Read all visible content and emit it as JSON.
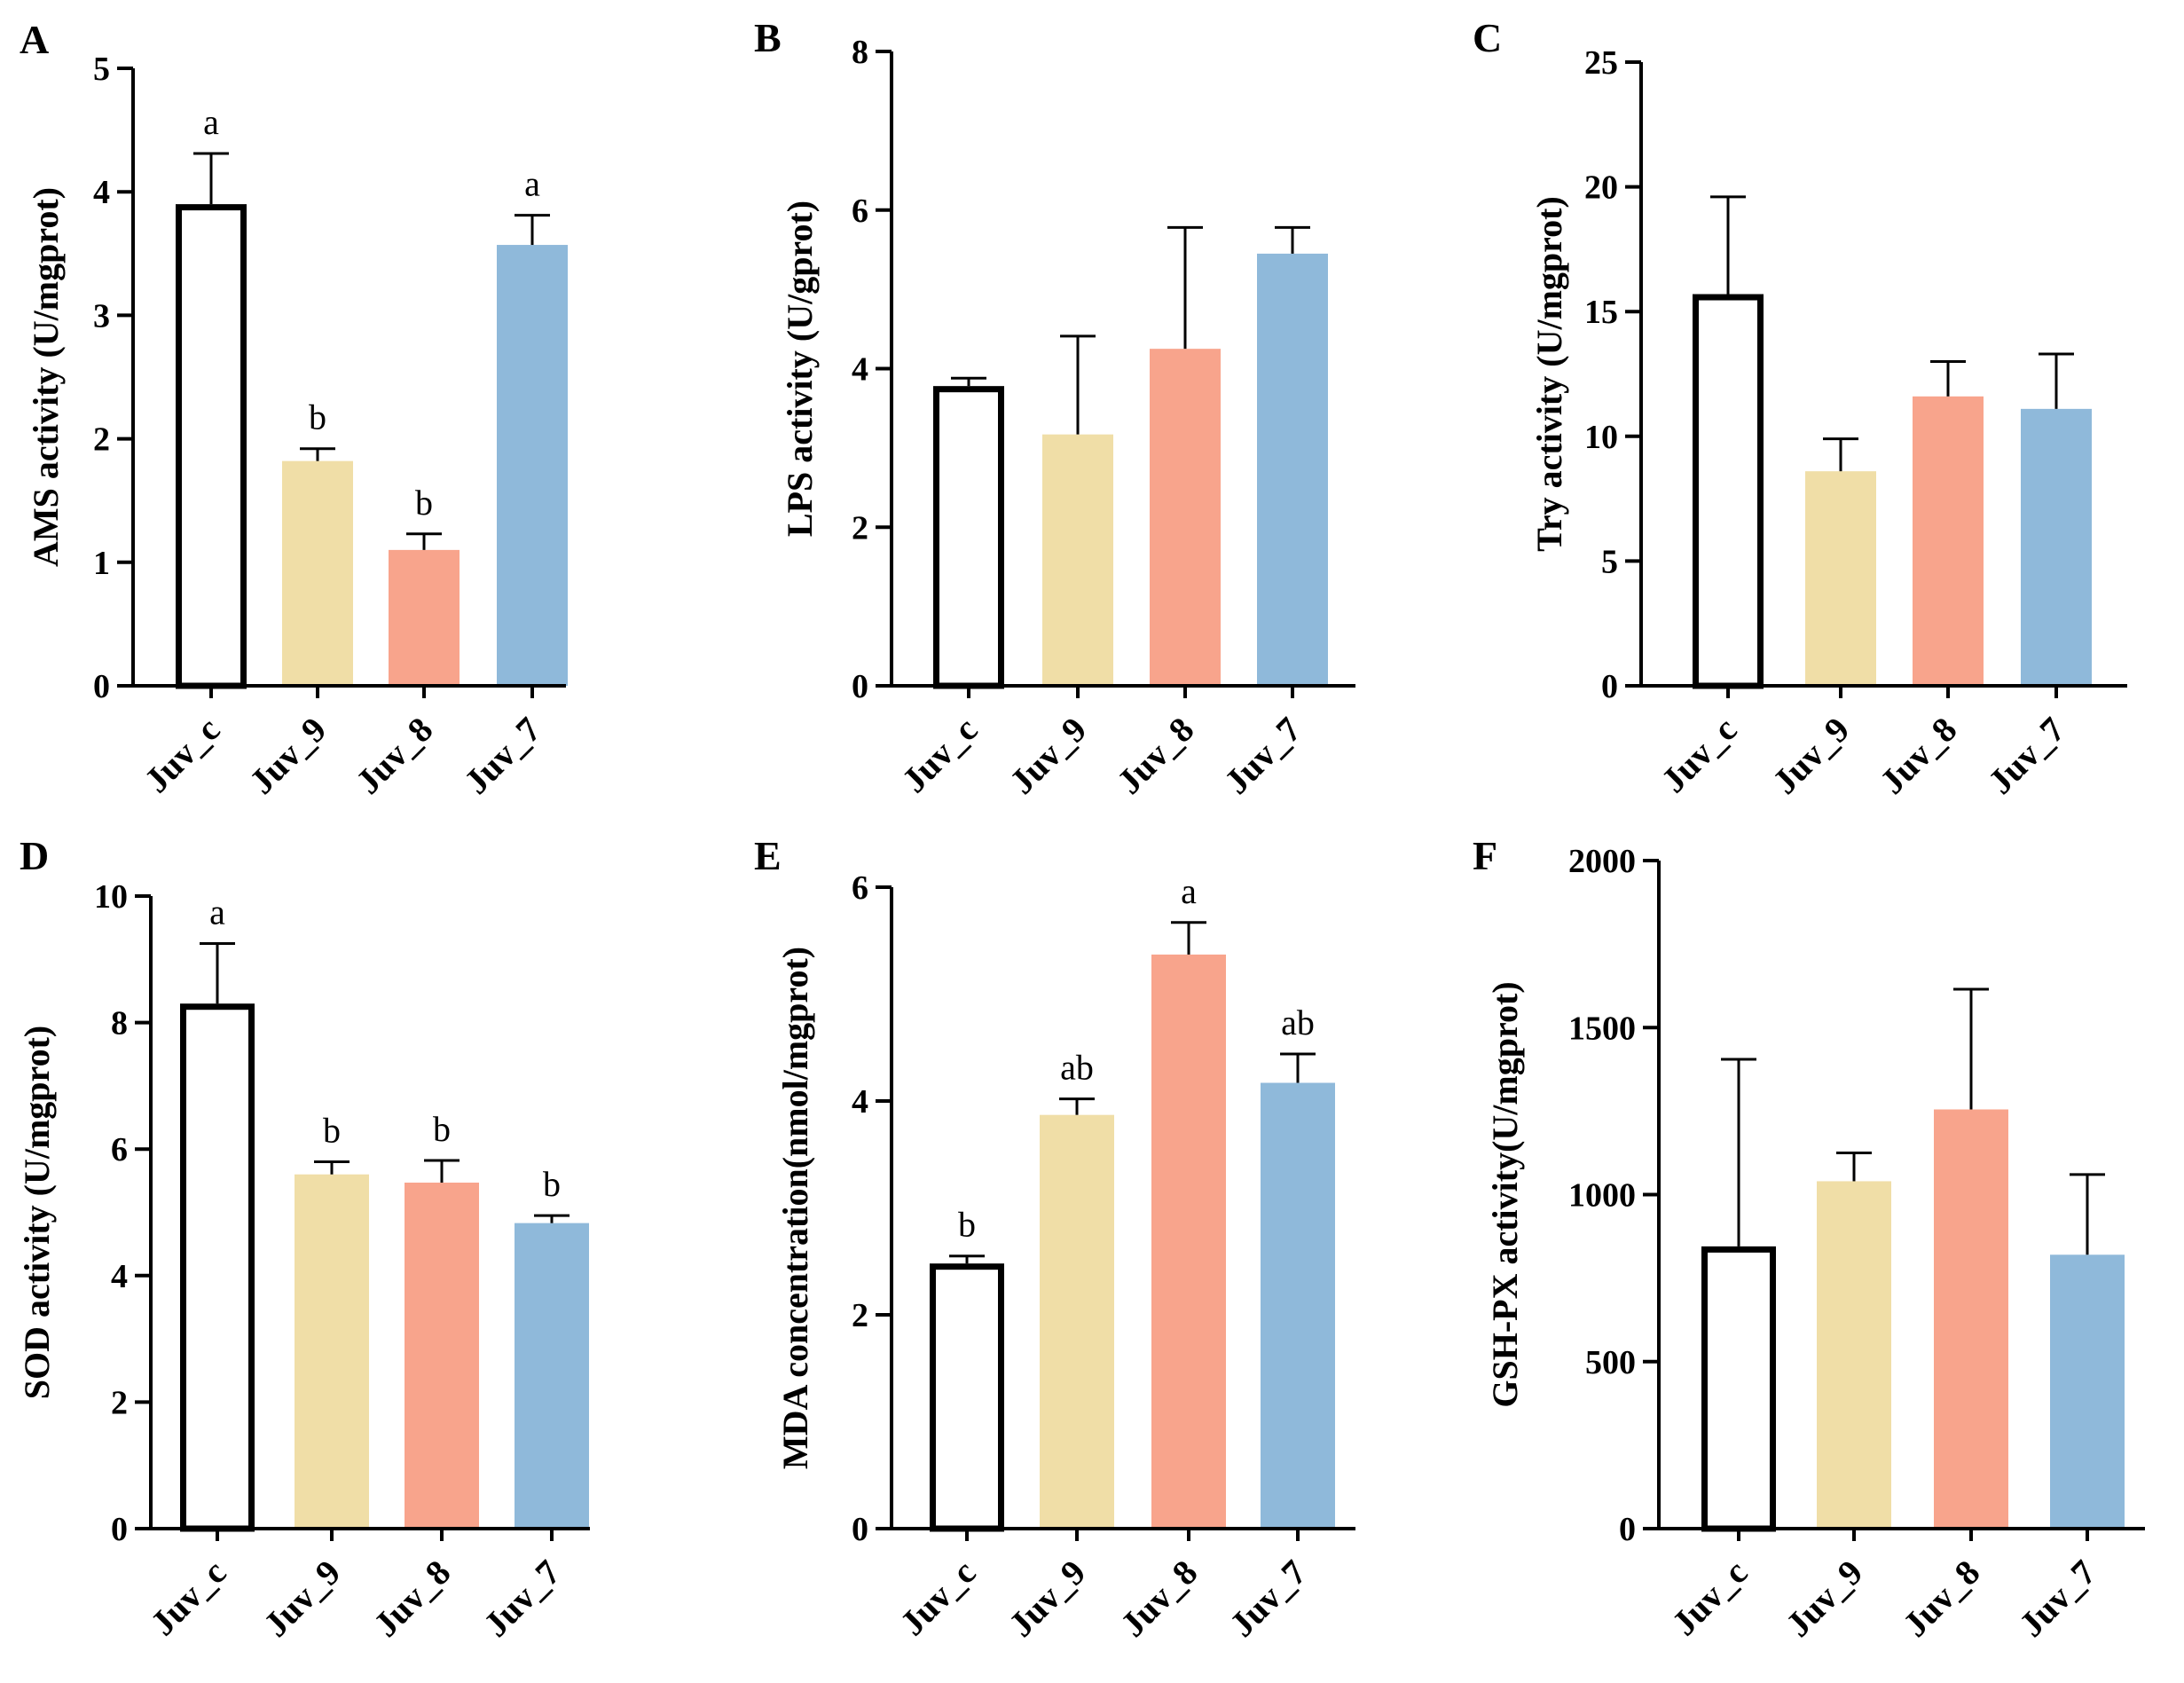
{
  "chart_data": [
    {
      "type": "bar",
      "panel": "A",
      "ylabel": "AMS activity (U/mgprot)",
      "categories": [
        "Juv_c",
        "Juv_9",
        "Juv_8",
        "Juv_7"
      ],
      "values": [
        3.9,
        1.82,
        1.1,
        3.57
      ],
      "errors": [
        0.41,
        0.1,
        0.13,
        0.24
      ],
      "letters": [
        "a",
        "b",
        "b",
        "a"
      ],
      "ylim": [
        0,
        5
      ],
      "yticks": [
        0,
        1,
        2,
        3,
        4,
        5
      ]
    },
    {
      "type": "bar",
      "panel": "B",
      "ylabel": "LPS activity (U/gprot)",
      "categories": [
        "Juv_c",
        "Juv_9",
        "Juv_8",
        "Juv_7"
      ],
      "values": [
        3.78,
        3.17,
        4.25,
        5.45
      ],
      "errors": [
        0.1,
        1.24,
        1.53,
        0.33
      ],
      "letters": [
        "",
        "",
        "",
        ""
      ],
      "ylim": [
        0,
        8
      ],
      "yticks": [
        0,
        2,
        4,
        6,
        8
      ]
    },
    {
      "type": "bar",
      "panel": "C",
      "ylabel": "Try activity (U/mgprot)",
      "categories": [
        "Juv_c",
        "Juv_9",
        "Juv_8",
        "Juv_7"
      ],
      "values": [
        15.7,
        8.6,
        11.6,
        11.1
      ],
      "errors": [
        3.9,
        1.3,
        1.4,
        2.2
      ],
      "letters": [
        "",
        "",
        "",
        ""
      ],
      "ylim": [
        0,
        25
      ],
      "yticks": [
        0,
        5,
        10,
        15,
        20,
        25
      ]
    },
    {
      "type": "bar",
      "panel": "D",
      "ylabel": "SOD activity (U/mgprot)",
      "categories": [
        "Juv_c",
        "Juv_9",
        "Juv_8",
        "Juv_7"
      ],
      "values": [
        8.3,
        5.6,
        5.47,
        4.83
      ],
      "errors": [
        0.95,
        0.2,
        0.35,
        0.12
      ],
      "letters": [
        "a",
        "b",
        "b",
        "b"
      ],
      "ylim": [
        0,
        10
      ],
      "yticks": [
        0,
        2,
        4,
        6,
        8,
        10
      ]
    },
    {
      "type": "bar",
      "panel": "E",
      "ylabel": "MDA concentration(nmol/mgprot)",
      "categories": [
        "Juv_c",
        "Juv_9",
        "Juv_8",
        "Juv_7"
      ],
      "values": [
        2.48,
        3.87,
        5.37,
        4.17
      ],
      "errors": [
        0.07,
        0.15,
        0.3,
        0.27
      ],
      "letters": [
        "b",
        "ab",
        "a",
        "ab"
      ],
      "ylim": [
        0,
        6
      ],
      "yticks": [
        0,
        2,
        4,
        6
      ]
    },
    {
      "type": "bar",
      "panel": "F",
      "ylabel": "GSH-PX activity(U/mgprot)",
      "categories": [
        "Juv_c",
        "Juv_9",
        "Juv_8",
        "Juv_7"
      ],
      "values": [
        845,
        1040,
        1255,
        820
      ],
      "errors": [
        560,
        85,
        360,
        240
      ],
      "letters": [
        "",
        "",
        "",
        ""
      ],
      "ylim": [
        0,
        2000
      ],
      "yticks": [
        0,
        500,
        1000,
        1500,
        2000
      ]
    }
  ],
  "colors": {
    "control_fill": "#ffffff",
    "control_stroke": "#000000",
    "bars": [
      "#ffffff",
      "#f0dea7",
      "#f8a48c",
      "#8fb9da"
    ],
    "axis": "#000000"
  }
}
